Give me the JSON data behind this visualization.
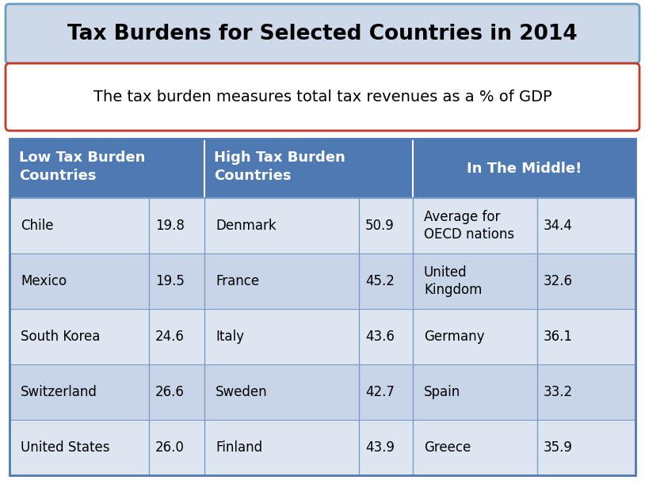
{
  "title": "Tax Burdens for Selected Countries in 2014",
  "subtitle": "The tax burden measures total tax revenues as a % of GDP",
  "title_bg": "#cdd8e8",
  "title_border": "#6a9bc3",
  "subtitle_border": "#c0392b",
  "header_bg": "#4f79b2",
  "row_bg_even": "#dce5f0",
  "row_bg_odd": "#c8d5e8",
  "table_border": "#4f79b2",
  "divider_color": "#7a9cc5",
  "col1_data": [
    [
      "Chile",
      "19.8"
    ],
    [
      "Mexico",
      "19.5"
    ],
    [
      "South Korea",
      "24.6"
    ],
    [
      "Switzerland",
      "26.6"
    ],
    [
      "United States",
      "26.0"
    ]
  ],
  "col2_data": [
    [
      "Denmark",
      "50.9"
    ],
    [
      "France",
      "45.2"
    ],
    [
      "Italy",
      "43.6"
    ],
    [
      "Sweden",
      "42.7"
    ],
    [
      "Finland",
      "43.9"
    ]
  ],
  "col3_data": [
    [
      "Average for\nOECD nations",
      "34.4"
    ],
    [
      "United\nKingdom",
      "32.6"
    ],
    [
      "Germany",
      "36.1"
    ],
    [
      "Spain",
      "33.2"
    ],
    [
      "Greece",
      "35.9"
    ]
  ]
}
